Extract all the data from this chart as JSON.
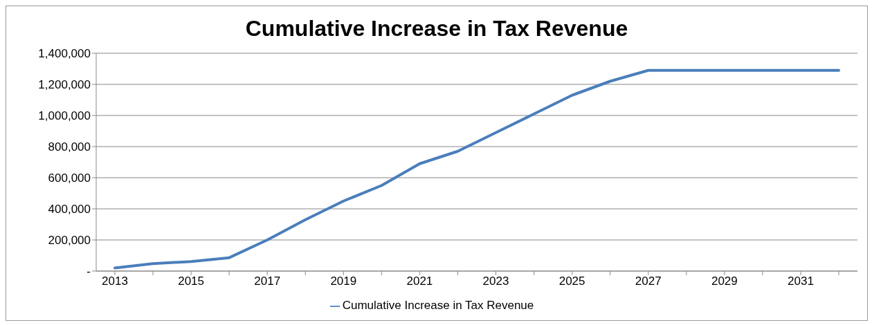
{
  "chart_data": {
    "type": "line",
    "title": "Cumulative Increase in Tax Revenue",
    "categories": [
      "2013",
      null,
      "2015",
      null,
      "2017",
      null,
      "2019",
      null,
      "2021",
      null,
      "2023",
      null,
      "2025",
      null,
      "2027",
      null,
      "2029",
      null,
      "2031",
      null
    ],
    "series": [
      {
        "name": "Cumulative Increase in Tax Revenue",
        "color": "#4a7ebb",
        "values": [
          20000,
          48000,
          61000,
          86000,
          200000,
          330000,
          450000,
          550000,
          690000,
          770000,
          890000,
          1010000,
          1130000,
          1220000,
          1290000,
          1290000,
          1290000,
          1290000,
          1290000,
          1290000
        ]
      }
    ],
    "ylim": [
      0,
      1400000
    ],
    "yticks": [
      {
        "value": 0,
        "label": "-"
      },
      {
        "value": 200000,
        "label": "200,000"
      },
      {
        "value": 400000,
        "label": "400,000"
      },
      {
        "value": 600000,
        "label": "600,000"
      },
      {
        "value": 800000,
        "label": "800,000"
      },
      {
        "value": 1000000,
        "label": "1,000,000"
      },
      {
        "value": 1200000,
        "label": "1,200,000"
      },
      {
        "value": 1400000,
        "label": "1,400,000"
      }
    ],
    "grid": "y",
    "legend": "bottom",
    "marker": "none",
    "line_style": "solid"
  }
}
